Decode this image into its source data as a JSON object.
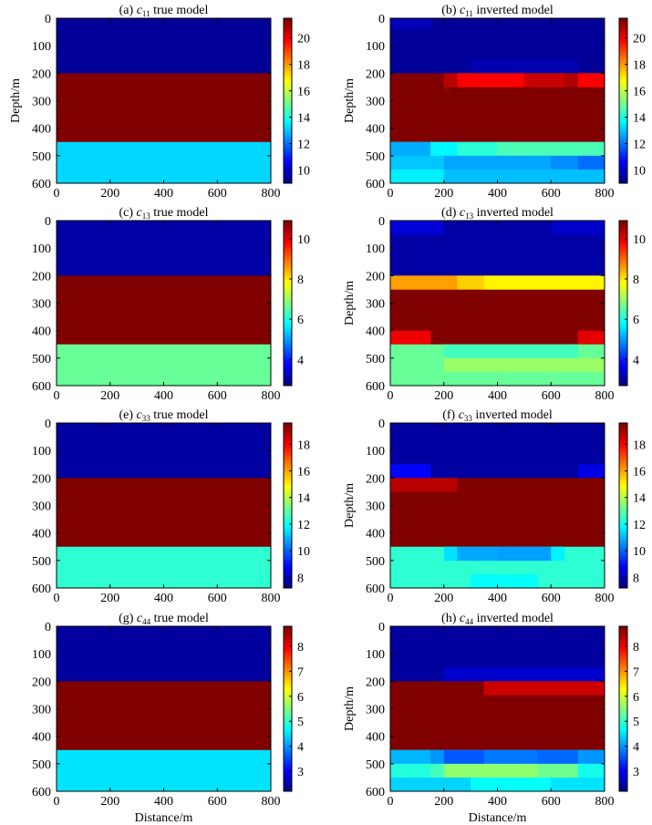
{
  "figure": {
    "xlabel_bottom": "Distance/m"
  },
  "chart_data": [
    {
      "id": "a",
      "type": "heatmap",
      "title_prefix": "(a) ",
      "title_var": "c",
      "title_sub": "11",
      "title_suffix": " true model",
      "ylabel": "Depth/m",
      "xlabel": "",
      "xlim": [
        0,
        800
      ],
      "ylim": [
        0,
        600
      ],
      "y_inverted": true,
      "xticks": [
        0,
        200,
        400,
        600,
        800
      ],
      "yticks": [
        0,
        100,
        200,
        300,
        400,
        500,
        600
      ],
      "colormap": "jet",
      "clim": [
        9,
        21.5
      ],
      "cbar_ticks": [
        10,
        12,
        14,
        16,
        18,
        20
      ],
      "cells": [
        {
          "x": [
            0,
            800
          ],
          "y": [
            0,
            200
          ],
          "v": 9.3
        },
        {
          "x": [
            0,
            800
          ],
          "y": [
            200,
            450
          ],
          "v": 21.5
        },
        {
          "x": [
            0,
            800
          ],
          "y": [
            450,
            600
          ],
          "v": 13.2
        }
      ]
    },
    {
      "id": "b",
      "type": "heatmap",
      "title_prefix": "(b) ",
      "title_var": "c",
      "title_sub": "11",
      "title_suffix": " inverted  model",
      "ylabel": "Depth/m",
      "xlabel": "",
      "xlim": [
        0,
        800
      ],
      "ylim": [
        0,
        600
      ],
      "y_inverted": true,
      "xticks": [
        0,
        200,
        400,
        600,
        800
      ],
      "yticks": [
        0,
        100,
        200,
        300,
        400,
        500,
        600
      ],
      "colormap": "jet",
      "clim": [
        9,
        21.5
      ],
      "cbar_ticks": [
        "10",
        "12",
        "14",
        "16",
        "18",
        "20"
      ],
      "cbar_tick_values": [
        10,
        12,
        14,
        16,
        18,
        20
      ],
      "cbar_tick_text": [
        "10",
        "12",
        "14",
        "16",
        "18",
        "20"
      ],
      "cbar_tick_display": [
        "10",
        "12",
        "14",
        "16",
        "18",
        "20"
      ],
      "cells": [
        {
          "x": [
            0,
            800
          ],
          "y": [
            0,
            200
          ],
          "v": 9.3
        },
        {
          "x": [
            0,
            150
          ],
          "y": [
            0,
            40
          ],
          "v": 9.7
        },
        {
          "x": [
            300,
            700
          ],
          "y": [
            150,
            200
          ],
          "v": 9.6
        },
        {
          "x": [
            0,
            800
          ],
          "y": [
            200,
            450
          ],
          "v": 21.5
        },
        {
          "x": [
            250,
            500
          ],
          "y": [
            200,
            250
          ],
          "v": 20.0
        },
        {
          "x": [
            200,
            250
          ],
          "y": [
            200,
            250
          ],
          "v": 20.8
        },
        {
          "x": [
            500,
            650
          ],
          "y": [
            200,
            250
          ],
          "v": 20.6
        },
        {
          "x": [
            650,
            700
          ],
          "y": [
            200,
            250
          ],
          "v": 20.9
        },
        {
          "x": [
            700,
            800
          ],
          "y": [
            200,
            250
          ],
          "v": 20.0
        },
        {
          "x": [
            0,
            800
          ],
          "y": [
            450,
            600
          ],
          "v": 13.2
        },
        {
          "x": [
            0,
            150
          ],
          "y": [
            450,
            500
          ],
          "v": 12.7
        },
        {
          "x": [
            150,
            250
          ],
          "y": [
            450,
            500
          ],
          "v": 13.6
        },
        {
          "x": [
            250,
            400
          ],
          "y": [
            450,
            500
          ],
          "v": 14.2
        },
        {
          "x": [
            400,
            800
          ],
          "y": [
            450,
            500
          ],
          "v": 14.6
        },
        {
          "x": [
            0,
            200
          ],
          "y": [
            500,
            550
          ],
          "v": 13.0
        },
        {
          "x": [
            200,
            600
          ],
          "y": [
            500,
            550
          ],
          "v": 12.6
        },
        {
          "x": [
            600,
            700
          ],
          "y": [
            500,
            550
          ],
          "v": 12.3
        },
        {
          "x": [
            700,
            800
          ],
          "y": [
            500,
            550
          ],
          "v": 11.9
        },
        {
          "x": [
            0,
            200
          ],
          "y": [
            550,
            600
          ],
          "v": 13.5
        },
        {
          "x": [
            200,
            800
          ],
          "y": [
            550,
            600
          ],
          "v": 12.9
        }
      ]
    },
    {
      "id": "c",
      "type": "heatmap",
      "title_prefix": "(c) ",
      "title_var": "c",
      "title_sub": "13",
      "title_suffix": " true model",
      "ylabel": "",
      "xlabel": "",
      "xlim": [
        0,
        800
      ],
      "ylim": [
        0,
        600
      ],
      "y_inverted": true,
      "xticks": [
        0,
        200,
        400,
        600,
        800
      ],
      "yticks": [
        0,
        100,
        200,
        300,
        400,
        500,
        600
      ],
      "colormap": "jet",
      "clim": [
        2.7,
        10.9
      ],
      "cbar_ticks": [
        4,
        6,
        8,
        10
      ],
      "cells": [
        {
          "x": [
            0,
            800
          ],
          "y": [
            0,
            200
          ],
          "v": 3.0
        },
        {
          "x": [
            0,
            800
          ],
          "y": [
            200,
            450
          ],
          "v": 10.9
        },
        {
          "x": [
            0,
            800
          ],
          "y": [
            450,
            600
          ],
          "v": 6.6
        }
      ]
    },
    {
      "id": "d",
      "type": "heatmap",
      "title_prefix": "(d) ",
      "title_var": "c",
      "title_sub": "13",
      "title_suffix": " inverted model",
      "ylabel": "Depth/m",
      "xlabel": "",
      "xlim": [
        0,
        800
      ],
      "ylim": [
        0,
        600
      ],
      "y_inverted": true,
      "xticks": [
        0,
        200,
        400,
        600,
        800
      ],
      "yticks": [
        0,
        100,
        200,
        300,
        400,
        500,
        600
      ],
      "colormap": "jet",
      "clim": [
        2.7,
        10.9
      ],
      "cbar_ticks": [
        4,
        6,
        8,
        10
      ],
      "cells": [
        {
          "x": [
            0,
            800
          ],
          "y": [
            0,
            200
          ],
          "v": 3.0
        },
        {
          "x": [
            0,
            200
          ],
          "y": [
            0,
            50
          ],
          "v": 3.4
        },
        {
          "x": [
            600,
            800
          ],
          "y": [
            0,
            50
          ],
          "v": 3.3
        },
        {
          "x": [
            0,
            800
          ],
          "y": [
            200,
            450
          ],
          "v": 10.9
        },
        {
          "x": [
            0,
            250
          ],
          "y": [
            200,
            250
          ],
          "v": 8.6
        },
        {
          "x": [
            250,
            350
          ],
          "y": [
            200,
            250
          ],
          "v": 8.2
        },
        {
          "x": [
            350,
            800
          ],
          "y": [
            200,
            250
          ],
          "v": 7.9
        },
        {
          "x": [
            0,
            150
          ],
          "y": [
            400,
            450
          ],
          "v": 10.0
        },
        {
          "x": [
            700,
            800
          ],
          "y": [
            400,
            450
          ],
          "v": 10.1
        },
        {
          "x": [
            0,
            800
          ],
          "y": [
            450,
            600
          ],
          "v": 6.6
        },
        {
          "x": [
            200,
            700
          ],
          "y": [
            450,
            500
          ],
          "v": 6.3
        },
        {
          "x": [
            200,
            800
          ],
          "y": [
            500,
            550
          ],
          "v": 7.0
        },
        {
          "x": [
            0,
            800
          ],
          "y": [
            550,
            600
          ],
          "v": 6.6
        }
      ]
    },
    {
      "id": "e",
      "type": "heatmap",
      "title_prefix": "(e) ",
      "title_var": "c",
      "title_sub": "33",
      "title_suffix": " true model",
      "ylabel": "",
      "xlabel": "",
      "xlim": [
        0,
        800
      ],
      "ylim": [
        0,
        600
      ],
      "y_inverted": true,
      "xticks": [
        0,
        200,
        400,
        600,
        800
      ],
      "yticks": [
        0,
        100,
        200,
        300,
        400,
        500,
        600
      ],
      "colormap": "jet",
      "clim": [
        7.2,
        19.6
      ],
      "cbar_ticks": [
        8,
        10,
        12,
        14,
        16,
        18
      ],
      "cells": [
        {
          "x": [
            0,
            800
          ],
          "y": [
            0,
            200
          ],
          "v": 7.6
        },
        {
          "x": [
            0,
            800
          ],
          "y": [
            200,
            450
          ],
          "v": 19.6
        },
        {
          "x": [
            0,
            800
          ],
          "y": [
            450,
            600
          ],
          "v": 12.4
        }
      ]
    },
    {
      "id": "f",
      "type": "heatmap",
      "title_prefix": "(f) ",
      "title_var": "c",
      "title_sub": "33",
      "title_suffix": " inverted model",
      "ylabel": "Depth/m",
      "xlabel": "",
      "xlim": [
        0,
        800
      ],
      "ylim": [
        0,
        600
      ],
      "y_inverted": true,
      "xticks": [
        0,
        200,
        400,
        600,
        800
      ],
      "yticks": [
        0,
        100,
        200,
        300,
        400,
        500,
        600
      ],
      "colormap": "jet",
      "clim": [
        7.2,
        19.6
      ],
      "cbar_ticks": [
        8,
        10,
        12,
        14,
        16,
        18
      ],
      "cells": [
        {
          "x": [
            0,
            800
          ],
          "y": [
            0,
            200
          ],
          "v": 7.6
        },
        {
          "x": [
            0,
            150
          ],
          "y": [
            150,
            200
          ],
          "v": 8.8
        },
        {
          "x": [
            700,
            800
          ],
          "y": [
            150,
            200
          ],
          "v": 8.4
        },
        {
          "x": [
            0,
            800
          ],
          "y": [
            200,
            450
          ],
          "v": 19.6
        },
        {
          "x": [
            0,
            250
          ],
          "y": [
            200,
            250
          ],
          "v": 18.9
        },
        {
          "x": [
            0,
            800
          ],
          "y": [
            450,
            600
          ],
          "v": 12.4
        },
        {
          "x": [
            200,
            250
          ],
          "y": [
            450,
            500
          ],
          "v": 11.5
        },
        {
          "x": [
            250,
            400
          ],
          "y": [
            450,
            500
          ],
          "v": 10.8
        },
        {
          "x": [
            400,
            600
          ],
          "y": [
            450,
            500
          ],
          "v": 10.7
        },
        {
          "x": [
            600,
            650
          ],
          "y": [
            450,
            500
          ],
          "v": 11.7
        },
        {
          "x": [
            300,
            550
          ],
          "y": [
            550,
            600
          ],
          "v": 11.9
        }
      ]
    },
    {
      "id": "g",
      "type": "heatmap",
      "title_prefix": "(g) ",
      "title_var": "c",
      "title_sub": "44",
      "title_suffix": " true model",
      "ylabel": "",
      "xlabel": "Distance/m",
      "xlim": [
        0,
        800
      ],
      "ylim": [
        0,
        600
      ],
      "y_inverted": true,
      "xticks": [
        0,
        200,
        400,
        600,
        800
      ],
      "yticks": [
        0,
        100,
        200,
        300,
        400,
        500,
        600
      ],
      "colormap": "jet",
      "clim": [
        2.2,
        8.8
      ],
      "cbar_ticks": [
        3,
        4,
        5,
        6,
        7,
        8
      ],
      "cells": [
        {
          "x": [
            0,
            800
          ],
          "y": [
            0,
            200
          ],
          "v": 2.4
        },
        {
          "x": [
            0,
            800
          ],
          "y": [
            200,
            450
          ],
          "v": 8.8
        },
        {
          "x": [
            0,
            800
          ],
          "y": [
            450,
            600
          ],
          "v": 4.5
        }
      ]
    },
    {
      "id": "h",
      "type": "heatmap",
      "title_prefix": "(h) ",
      "title_var": "c",
      "title_sub": "44",
      "title_suffix": " inverted model",
      "ylabel": "Depth/m",
      "xlabel": "Distance/m",
      "xlim": [
        0,
        800
      ],
      "ylim": [
        0,
        600
      ],
      "y_inverted": true,
      "xticks": [
        0,
        200,
        400,
        600,
        800
      ],
      "yticks": [
        0,
        100,
        200,
        300,
        400,
        500,
        600
      ],
      "colormap": "jet",
      "clim": [
        2.2,
        8.8
      ],
      "cbar_ticks": [
        3,
        4,
        5,
        6,
        7,
        8
      ],
      "cells": [
        {
          "x": [
            0,
            800
          ],
          "y": [
            0,
            200
          ],
          "v": 2.4
        },
        {
          "x": [
            200,
            800
          ],
          "y": [
            150,
            200
          ],
          "v": 2.7
        },
        {
          "x": [
            0,
            800
          ],
          "y": [
            200,
            450
          ],
          "v": 8.8
        },
        {
          "x": [
            350,
            800
          ],
          "y": [
            200,
            250
          ],
          "v": 8.3
        },
        {
          "x": [
            0,
            800
          ],
          "y": [
            450,
            600
          ],
          "v": 4.5
        },
        {
          "x": [
            0,
            150
          ],
          "y": [
            450,
            500
          ],
          "v": 4.2
        },
        {
          "x": [
            150,
            200
          ],
          "y": [
            450,
            500
          ],
          "v": 4.0
        },
        {
          "x": [
            200,
            350
          ],
          "y": [
            450,
            500
          ],
          "v": 3.6
        },
        {
          "x": [
            350,
            550
          ],
          "y": [
            450,
            500
          ],
          "v": 3.8
        },
        {
          "x": [
            550,
            700
          ],
          "y": [
            450,
            500
          ],
          "v": 3.7
        },
        {
          "x": [
            700,
            800
          ],
          "y": [
            450,
            500
          ],
          "v": 4.0
        },
        {
          "x": [
            0,
            150
          ],
          "y": [
            500,
            550
          ],
          "v": 4.9
        },
        {
          "x": [
            150,
            200
          ],
          "y": [
            500,
            550
          ],
          "v": 5.1
        },
        {
          "x": [
            200,
            550
          ],
          "y": [
            500,
            550
          ],
          "v": 5.6
        },
        {
          "x": [
            550,
            700
          ],
          "y": [
            500,
            550
          ],
          "v": 5.4
        },
        {
          "x": [
            700,
            800
          ],
          "y": [
            500,
            550
          ],
          "v": 4.8
        },
        {
          "x": [
            0,
            300
          ],
          "y": [
            550,
            600
          ],
          "v": 4.4
        },
        {
          "x": [
            300,
            600
          ],
          "y": [
            550,
            600
          ],
          "v": 4.7
        },
        {
          "x": [
            600,
            800
          ],
          "y": [
            550,
            600
          ],
          "v": 4.5
        }
      ]
    }
  ]
}
